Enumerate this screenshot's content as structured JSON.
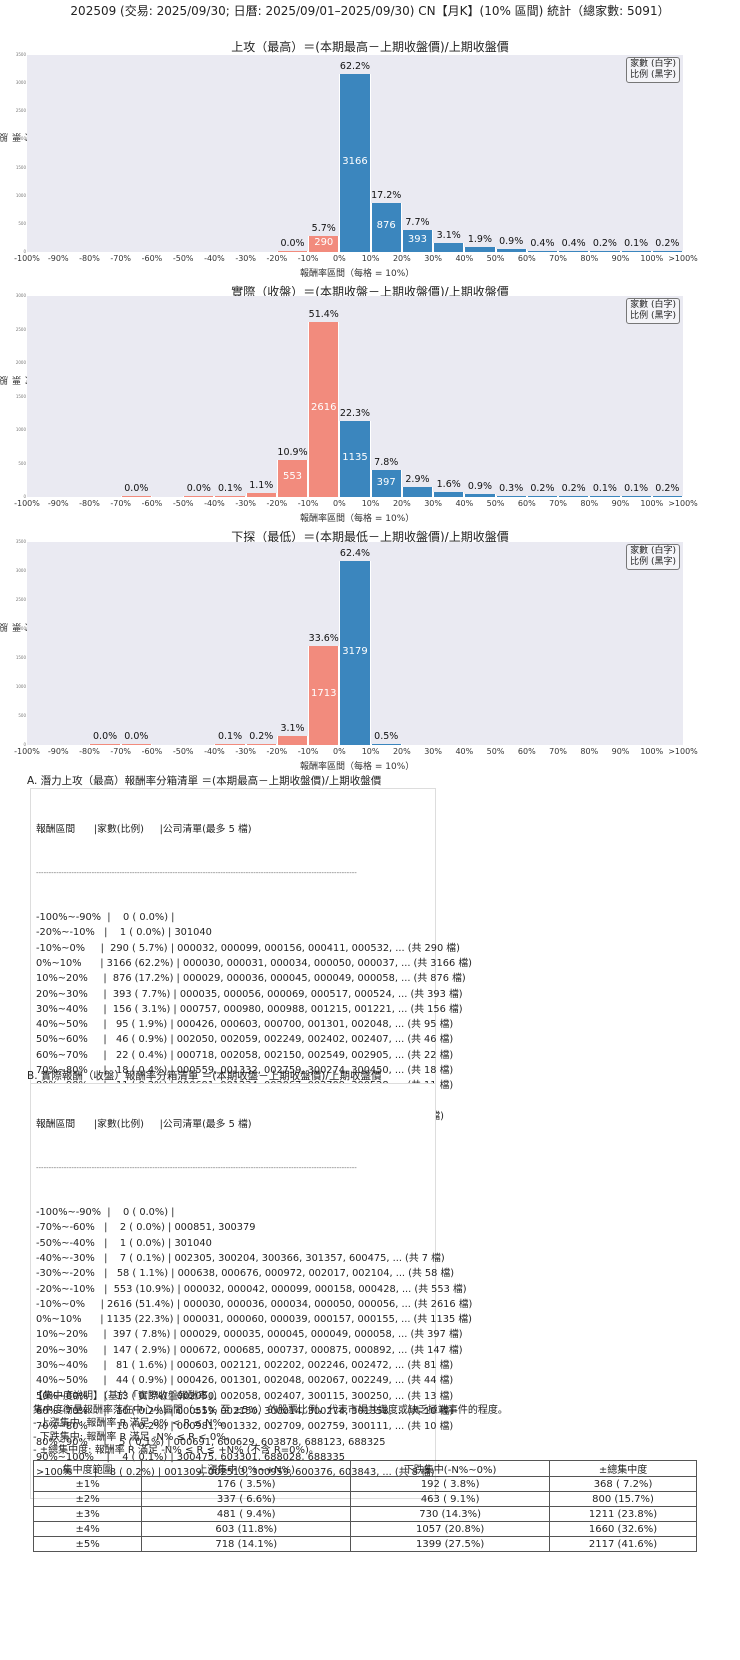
{
  "header": {
    "title": "202509 (交易: 2025/09/30; 日曆: 2025/09/01–2025/09/30) CN【月K】(10% 區間) 統計（總家數: 5091）"
  },
  "legend": {
    "line1": "家數 (白字)",
    "line2": "比例 (黑字)"
  },
  "axis": {
    "ylabel": "股票家數",
    "xlabel": "報酬率區間（每格 = 10%）"
  },
  "colors": {
    "negative": "#f28b7d",
    "positive": "#3b86be",
    "plot_bg": "#eaeaf2"
  },
  "chart_data": [
    {
      "type": "bar",
      "title": "上攻（最高）＝(本期最高－上期收盤價)/上期收盤價",
      "xlabel": "報酬率區間（每格 = 10%）",
      "ylabel": "股票家數",
      "ylim": [
        0,
        3500
      ],
      "yticks": [
        0,
        500,
        1000,
        1500,
        2000,
        2500,
        3000,
        3500
      ],
      "categories": [
        "-100%~-90%",
        "-90%~-80%",
        "-80%~-70%",
        "-70%~-60%",
        "-60%~-50%",
        "-50%~-40%",
        "-40%~-30%",
        "-30%~-20%",
        "-20%~-10%",
        "-10%~0%",
        "0%~10%",
        "10%~20%",
        "20%~30%",
        "30%~40%",
        "40%~50%",
        "50%~60%",
        "60%~70%",
        "70%~80%",
        "80%~90%",
        "90%~100%",
        ">100%"
      ],
      "xticks": [
        "-100%",
        "-90%",
        "-80%",
        "-70%",
        "-60%",
        "-50%",
        "-40%",
        "-30%",
        "-20%",
        "-10%",
        "0%",
        "10%",
        "20%",
        "30%",
        "40%",
        "50%",
        "60%",
        "70%",
        "80%",
        "90%",
        "100%",
        ">100%"
      ],
      "values": [
        0,
        0,
        0,
        0,
        0,
        0,
        0,
        0,
        1,
        290,
        3166,
        876,
        393,
        156,
        95,
        46,
        22,
        18,
        11,
        5,
        12
      ],
      "pct_labels": [
        "",
        "",
        "",
        "",
        "",
        "",
        "",
        "",
        "0.0%",
        "5.7%",
        "62.2%",
        "17.2%",
        "7.7%",
        "3.1%",
        "1.9%",
        "0.9%",
        "0.4%",
        "0.4%",
        "0.2%",
        "0.1%",
        "0.2%"
      ],
      "grid": false,
      "legend_position": "upper right"
    },
    {
      "type": "bar",
      "title": "實際（收盤）＝(本期收盤－上期收盤價)/上期收盤價",
      "xlabel": "報酬率區間（每格 = 10%）",
      "ylabel": "股票家數",
      "ylim": [
        0,
        3000
      ],
      "yticks": [
        0,
        500,
        1000,
        1500,
        2000,
        2500,
        3000
      ],
      "categories": [
        "-100%~-90%",
        "-90%~-80%",
        "-80%~-70%",
        "-70%~-60%",
        "-60%~-50%",
        "-50%~-40%",
        "-40%~-30%",
        "-30%~-20%",
        "-20%~-10%",
        "-10%~0%",
        "0%~10%",
        "10%~20%",
        "20%~30%",
        "30%~40%",
        "40%~50%",
        "50%~60%",
        "60%~70%",
        "70%~80%",
        "80%~90%",
        "90%~100%",
        ">100%"
      ],
      "xticks": [
        "-100%",
        "-90%",
        "-80%",
        "-70%",
        "-60%",
        "-50%",
        "-40%",
        "-30%",
        "-20%",
        "-10%",
        "0%",
        "10%",
        "20%",
        "30%",
        "40%",
        "50%",
        "60%",
        "70%",
        "80%",
        "90%",
        "100%",
        ">100%"
      ],
      "values": [
        0,
        0,
        0,
        2,
        0,
        1,
        7,
        58,
        553,
        2616,
        1135,
        397,
        147,
        81,
        44,
        13,
        10,
        10,
        5,
        4,
        8
      ],
      "pct_labels": [
        "",
        "",
        "",
        "0.0%",
        "",
        "0.0%",
        "0.1%",
        "1.1%",
        "10.9%",
        "51.4%",
        "22.3%",
        "7.8%",
        "2.9%",
        "1.6%",
        "0.9%",
        "0.3%",
        "0.2%",
        "0.2%",
        "0.1%",
        "0.1%",
        "0.2%"
      ],
      "grid": false,
      "legend_position": "upper right"
    },
    {
      "type": "bar",
      "title": "下探（最低）＝(本期最低－上期收盤價)/上期收盤價",
      "xlabel": "報酬率區間（每格 = 10%）",
      "ylabel": "股票家數",
      "ylim": [
        0,
        3500
      ],
      "yticks": [
        0,
        500,
        1000,
        1500,
        2000,
        2500,
        3000,
        3500
      ],
      "categories": [
        "-100%~-90%",
        "-90%~-80%",
        "-80%~-70%",
        "-70%~-60%",
        "-60%~-50%",
        "-50%~-40%",
        "-40%~-30%",
        "-30%~-20%",
        "-20%~-10%",
        "-10%~0%",
        "0%~10%",
        "10%~20%",
        "20%~30%",
        "30%~40%",
        "40%~50%",
        "50%~60%",
        "60%~70%",
        "70%~80%",
        "80%~90%",
        "90%~100%",
        ">100%"
      ],
      "xticks": [
        "-100%",
        "-90%",
        "-80%",
        "-70%",
        "-60%",
        "-50%",
        "-40%",
        "-30%",
        "-20%",
        "-10%",
        "0%",
        "10%",
        "20%",
        "30%",
        "40%",
        "50%",
        "60%",
        "70%",
        "80%",
        "90%",
        "100%",
        ">100%"
      ],
      "values": [
        0,
        0,
        1,
        1,
        0,
        0,
        5,
        12,
        157,
        1713,
        3179,
        24,
        0,
        0,
        0,
        0,
        0,
        0,
        0,
        0,
        0
      ],
      "pct_labels": [
        "",
        "",
        "0.0%",
        "0.0%",
        "",
        "",
        "0.1%",
        "0.2%",
        "3.1%",
        "33.6%",
        "62.4%",
        "0.5%",
        "",
        "",
        "",
        "",
        "",
        "",
        "",
        "",
        ""
      ],
      "grid": false,
      "legend_position": "upper right"
    }
  ],
  "list_a": {
    "title": "A. 潛力上攻（最高）報酬率分箱清單 ＝(本期最高－上期收盤價)/上期收盤價",
    "header": "報酬區間      |家數(比例)     |公司清單(最多 5 檔)",
    "separator": "-------------------------------------------------------------------------------------------------------------------------------",
    "rows": [
      "-100%~-90%  |    0 ( 0.0%) |",
      "-20%~-10%   |    1 ( 0.0%) | 301040",
      "-10%~0%     |  290 ( 5.7%) | 000032, 000099, 000156, 000411, 000532, ... (共 290 檔)",
      "0%~10%      | 3166 (62.2%) | 000030, 000031, 000034, 000050, 000037, ... (共 3166 檔)",
      "10%~20%     |  876 (17.2%) | 000029, 000036, 000045, 000049, 000058, ... (共 876 檔)",
      "20%~30%     |  393 ( 7.7%) | 000035, 000056, 000069, 000517, 000524, ... (共 393 檔)",
      "30%~40%     |  156 ( 3.1%) | 000757, 000980, 000988, 001215, 001221, ... (共 156 檔)",
      "40%~50%     |   95 ( 1.9%) | 000426, 000603, 000700, 001301, 002048, ... (共 95 檔)",
      "50%~60%     |   46 ( 0.9%) | 002050, 002059, 002249, 002402, 002407, ... (共 46 檔)",
      "60%~70%     |   22 ( 0.4%) | 000718, 002058, 002150, 002549, 002905, ... (共 22 檔)",
      "70%~80%     |   18 ( 0.4%) | 000559, 001332, 002759, 300274, 300450, ... (共 18 檔)",
      "80%~90%     |   11 ( 0.2%) | 000691, 001234, 002067, 002709, 300528, ... (共 11 檔)",
      "90%~100%    |    5 ( 0.1%) | 000981, 600103, 600699, 603301, 688325",
      ">100%       |   12 ( 0.2%) | 001309, 002513, 300111, 300475, 300959, ... (共 12 檔)"
    ]
  },
  "list_b": {
    "title": "B. 實際報酬（收盤）報酬率分箱清單 ＝(本期收盤－上期收盤價)/上期收盤價",
    "header": "報酬區間      |家數(比例)     |公司清單(最多 5 檔)",
    "separator": "-------------------------------------------------------------------------------------------------------------------------------",
    "rows": [
      "-100%~-90%  |    0 ( 0.0%) |",
      "-70%~-60%   |    2 ( 0.0%) | 000851, 300379",
      "-50%~-40%   |    1 ( 0.0%) | 301040",
      "-40%~-30%   |    7 ( 0.1%) | 002305, 300204, 300366, 301357, 600475, ... (共 7 檔)",
      "-30%~-20%   |   58 ( 1.1%) | 000638, 000676, 000972, 002017, 002104, ... (共 58 檔)",
      "-20%~-10%   |  553 (10.9%) | 000032, 000042, 000099, 000158, 000428, ... (共 553 檔)",
      "-10%~0%     | 2616 (51.4%) | 000030, 000036, 000034, 000050, 000056, ... (共 2616 檔)",
      "0%~10%      | 1135 (22.3%) | 000031, 000060, 000039, 000157, 000155, ... (共 1135 檔)",
      "10%~20%     |  397 ( 7.8%) | 000029, 000035, 000045, 000049, 000058, ... (共 397 檔)",
      "20%~30%     |  147 ( 2.9%) | 000672, 000685, 000737, 000875, 000892, ... (共 147 檔)",
      "30%~40%     |   81 ( 1.6%) | 000603, 002121, 002202, 002246, 002472, ... (共 81 檔)",
      "40%~50%     |   44 ( 0.9%) | 000426, 001301, 002048, 002067, 002249, ... (共 44 檔)",
      "50%~60%     |   13 ( 0.3%) | 002050, 002058, 002407, 300115, 300250, ... (共 13 檔)",
      "60%~70%     |   10 ( 0.2%) | 000559, 002150, 300014, 300274, 301358, ... (共 10 檔)",
      "70%~80%     |   10 ( 0.2%) | 000981, 001332, 002709, 002759, 300111, ... (共 10 檔)",
      "80%~90%     |    5 ( 0.1%) | 000691, 600629, 603878, 688123, 688325",
      "90%~100%    |    4 ( 0.1%) | 300475, 603301, 688028, 688335",
      ">100%       |    8 ( 0.2%) | 001309, 002513, 300959, 600376, 603843, ... (共 8 檔)"
    ]
  },
  "concentration": {
    "heading": "【集中度說明】（基於「實際收盤報酬率」）",
    "desc": "集中度衡量報酬率落在中心小區間（±1% 至 ±5%）的股票比例，代表市場共識度或缺乏極端事件的程度。",
    "bullets": [
      " - 上漲集中: 報酬率 R 滿足 0% < R ≤ N%。",
      " - 下跌集中: 報酬率 R 滿足 -N% ≤ R < 0%。",
      " - ±總集中度: 報酬率 R 滿足 -N% ≤ R ≤ +N% (不含 R=0%)。"
    ],
    "columns": [
      "集中度範圍",
      "上漲集中(0%~+N%)",
      "下跌集中(-N%~0%)",
      "±總集中度"
    ],
    "rows": [
      [
        "±1%",
        "176 ( 3.5%)",
        "192 ( 3.8%)",
        "368 ( 7.2%)"
      ],
      [
        "±2%",
        "337 ( 6.6%)",
        "463 ( 9.1%)",
        "800 (15.7%)"
      ],
      [
        "±3%",
        "481 ( 9.4%)",
        "730 (14.3%)",
        "1211 (23.8%)"
      ],
      [
        "±4%",
        "603 (11.8%)",
        "1057 (20.8%)",
        "1660 (32.6%)"
      ],
      [
        "±5%",
        "718 (14.1%)",
        "1399 (27.5%)",
        "2117 (41.6%)"
      ]
    ]
  }
}
